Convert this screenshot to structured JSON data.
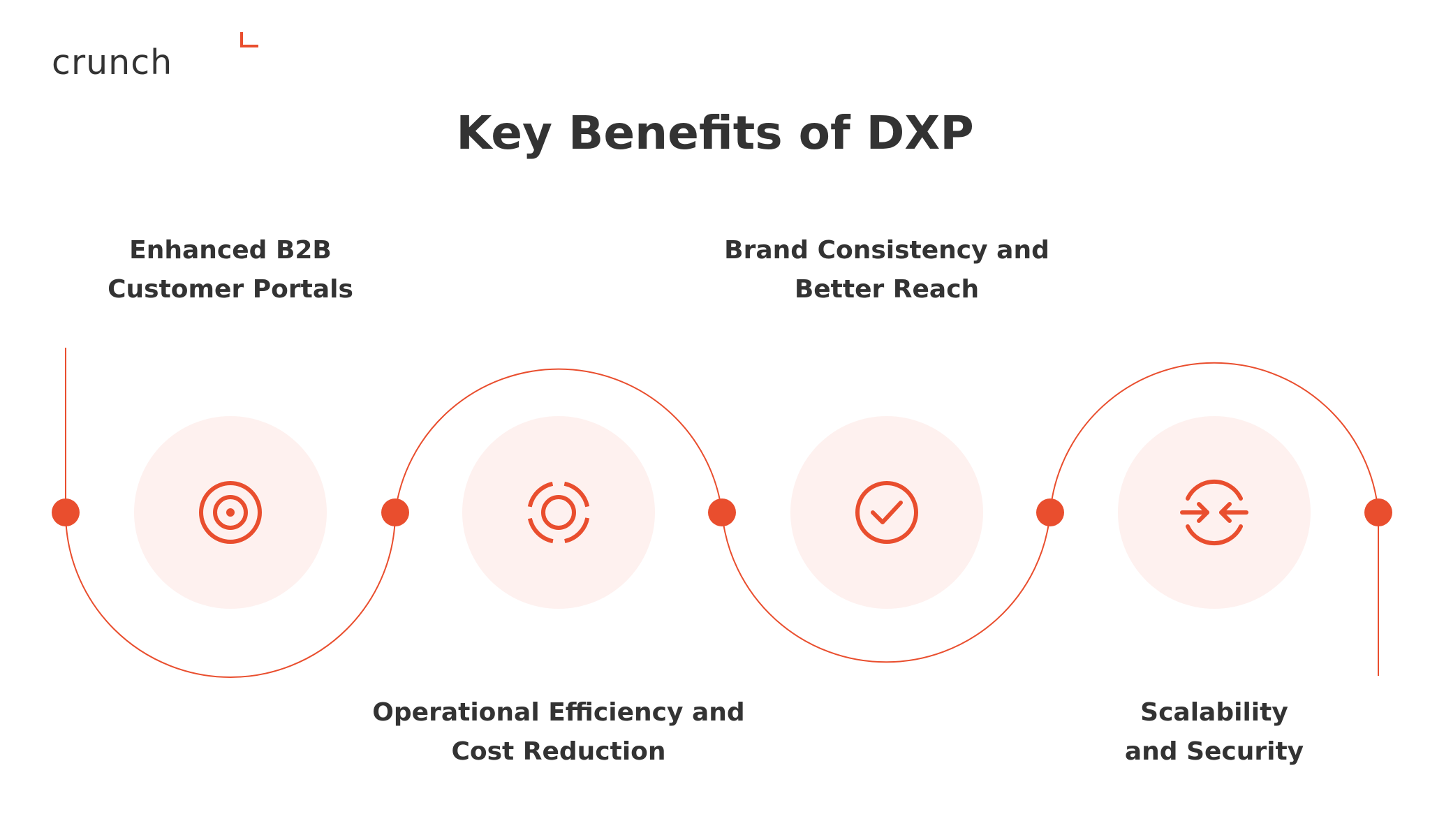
{
  "brand": {
    "logo_text": "crunch"
  },
  "title": "Key Benefits of DXP",
  "colors": {
    "accent": "#E94E2E",
    "halo": "#FEF1EF",
    "text": "#333333",
    "background": "#FFFFFF"
  },
  "benefits": [
    {
      "line1": "Enhanced B2B",
      "line2": "Customer Portals",
      "icon": "target-icon"
    },
    {
      "line1": "Operational Efficiency and",
      "line2": "Cost Reduction",
      "icon": "dashed-ring-icon"
    },
    {
      "line1": "Brand Consistency and",
      "line2": "Better Reach",
      "icon": "check-circle-icon"
    },
    {
      "line1": "Scalability",
      "line2": "and Security",
      "icon": "converge-arrows-icon"
    }
  ]
}
